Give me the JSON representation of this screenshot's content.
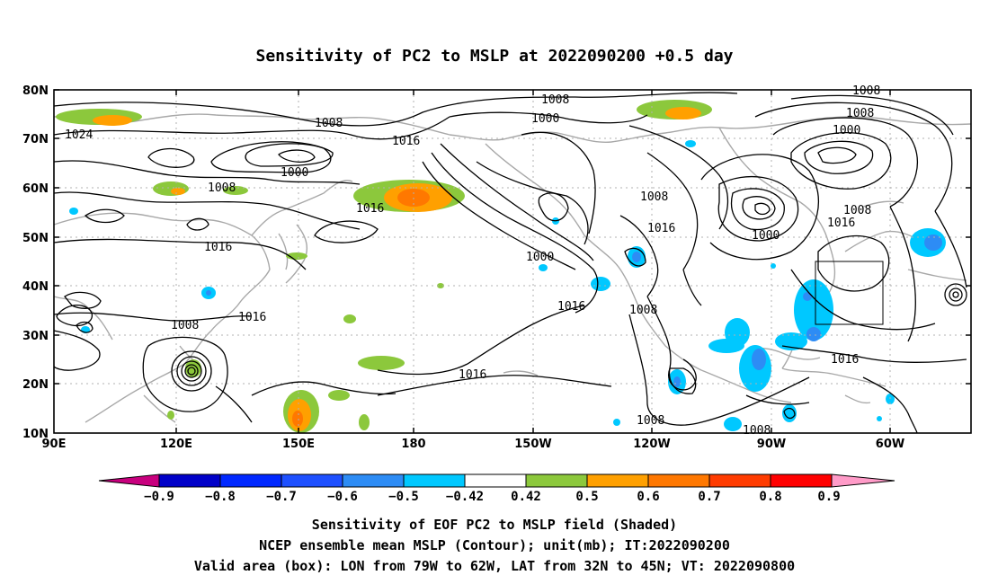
{
  "title": "Sensitivity of PC2 to MSLP at 2022090200 +0.5 day",
  "map": {
    "lat_ticks": [
      "80N",
      "70N",
      "60N",
      "50N",
      "40N",
      "30N",
      "20N",
      "10N"
    ],
    "lon_ticks": [
      "90E",
      "120E",
      "150E",
      "180",
      "150W",
      "120W",
      "90W",
      "60W"
    ],
    "lon_range": [
      "90E",
      "45W"
    ],
    "lat_range": [
      "10N",
      "80N"
    ],
    "grid": "dotted",
    "contour_labels": [
      "1008",
      "1000",
      "1008",
      "1000",
      "1016",
      "1008",
      "1000",
      "1008",
      "1024",
      "1008",
      "1008",
      "1000",
      "1016",
      "1008",
      "1016",
      "1016",
      "1000",
      "1016",
      "1008",
      "1016",
      "1016",
      "1008",
      "1016",
      "1008",
      "1008",
      "1016"
    ],
    "valid_box": {
      "lon_from": "79W",
      "lon_to": "62W",
      "lat_from": "32N",
      "lat_to": "45N"
    }
  },
  "colorbar": {
    "labels": [
      "−0.9",
      "−0.8",
      "−0.7",
      "−0.6",
      "−0.5",
      "−0.42",
      "0.42",
      "0.5",
      "0.6",
      "0.7",
      "0.8",
      "0.9"
    ],
    "colors": [
      "#c8007e",
      "#0000c8",
      "#0028ff",
      "#1e50ff",
      "#2d8cf5",
      "#00c8ff",
      "#ffffff",
      "#8cc83c",
      "#ffa000",
      "#ff7800",
      "#ff3c00",
      "#ff0000",
      "#ff9bc8"
    ]
  },
  "caption": {
    "line1": "Sensitivity of EOF PC2 to MSLP field (Shaded)",
    "line2": "NCEP ensemble mean MSLP (Contour); unit(mb); IT:2022090200",
    "line3": "Valid area (box): LON from 79W to 62W, LAT from 32N to 45N; VT: 2022090800"
  }
}
